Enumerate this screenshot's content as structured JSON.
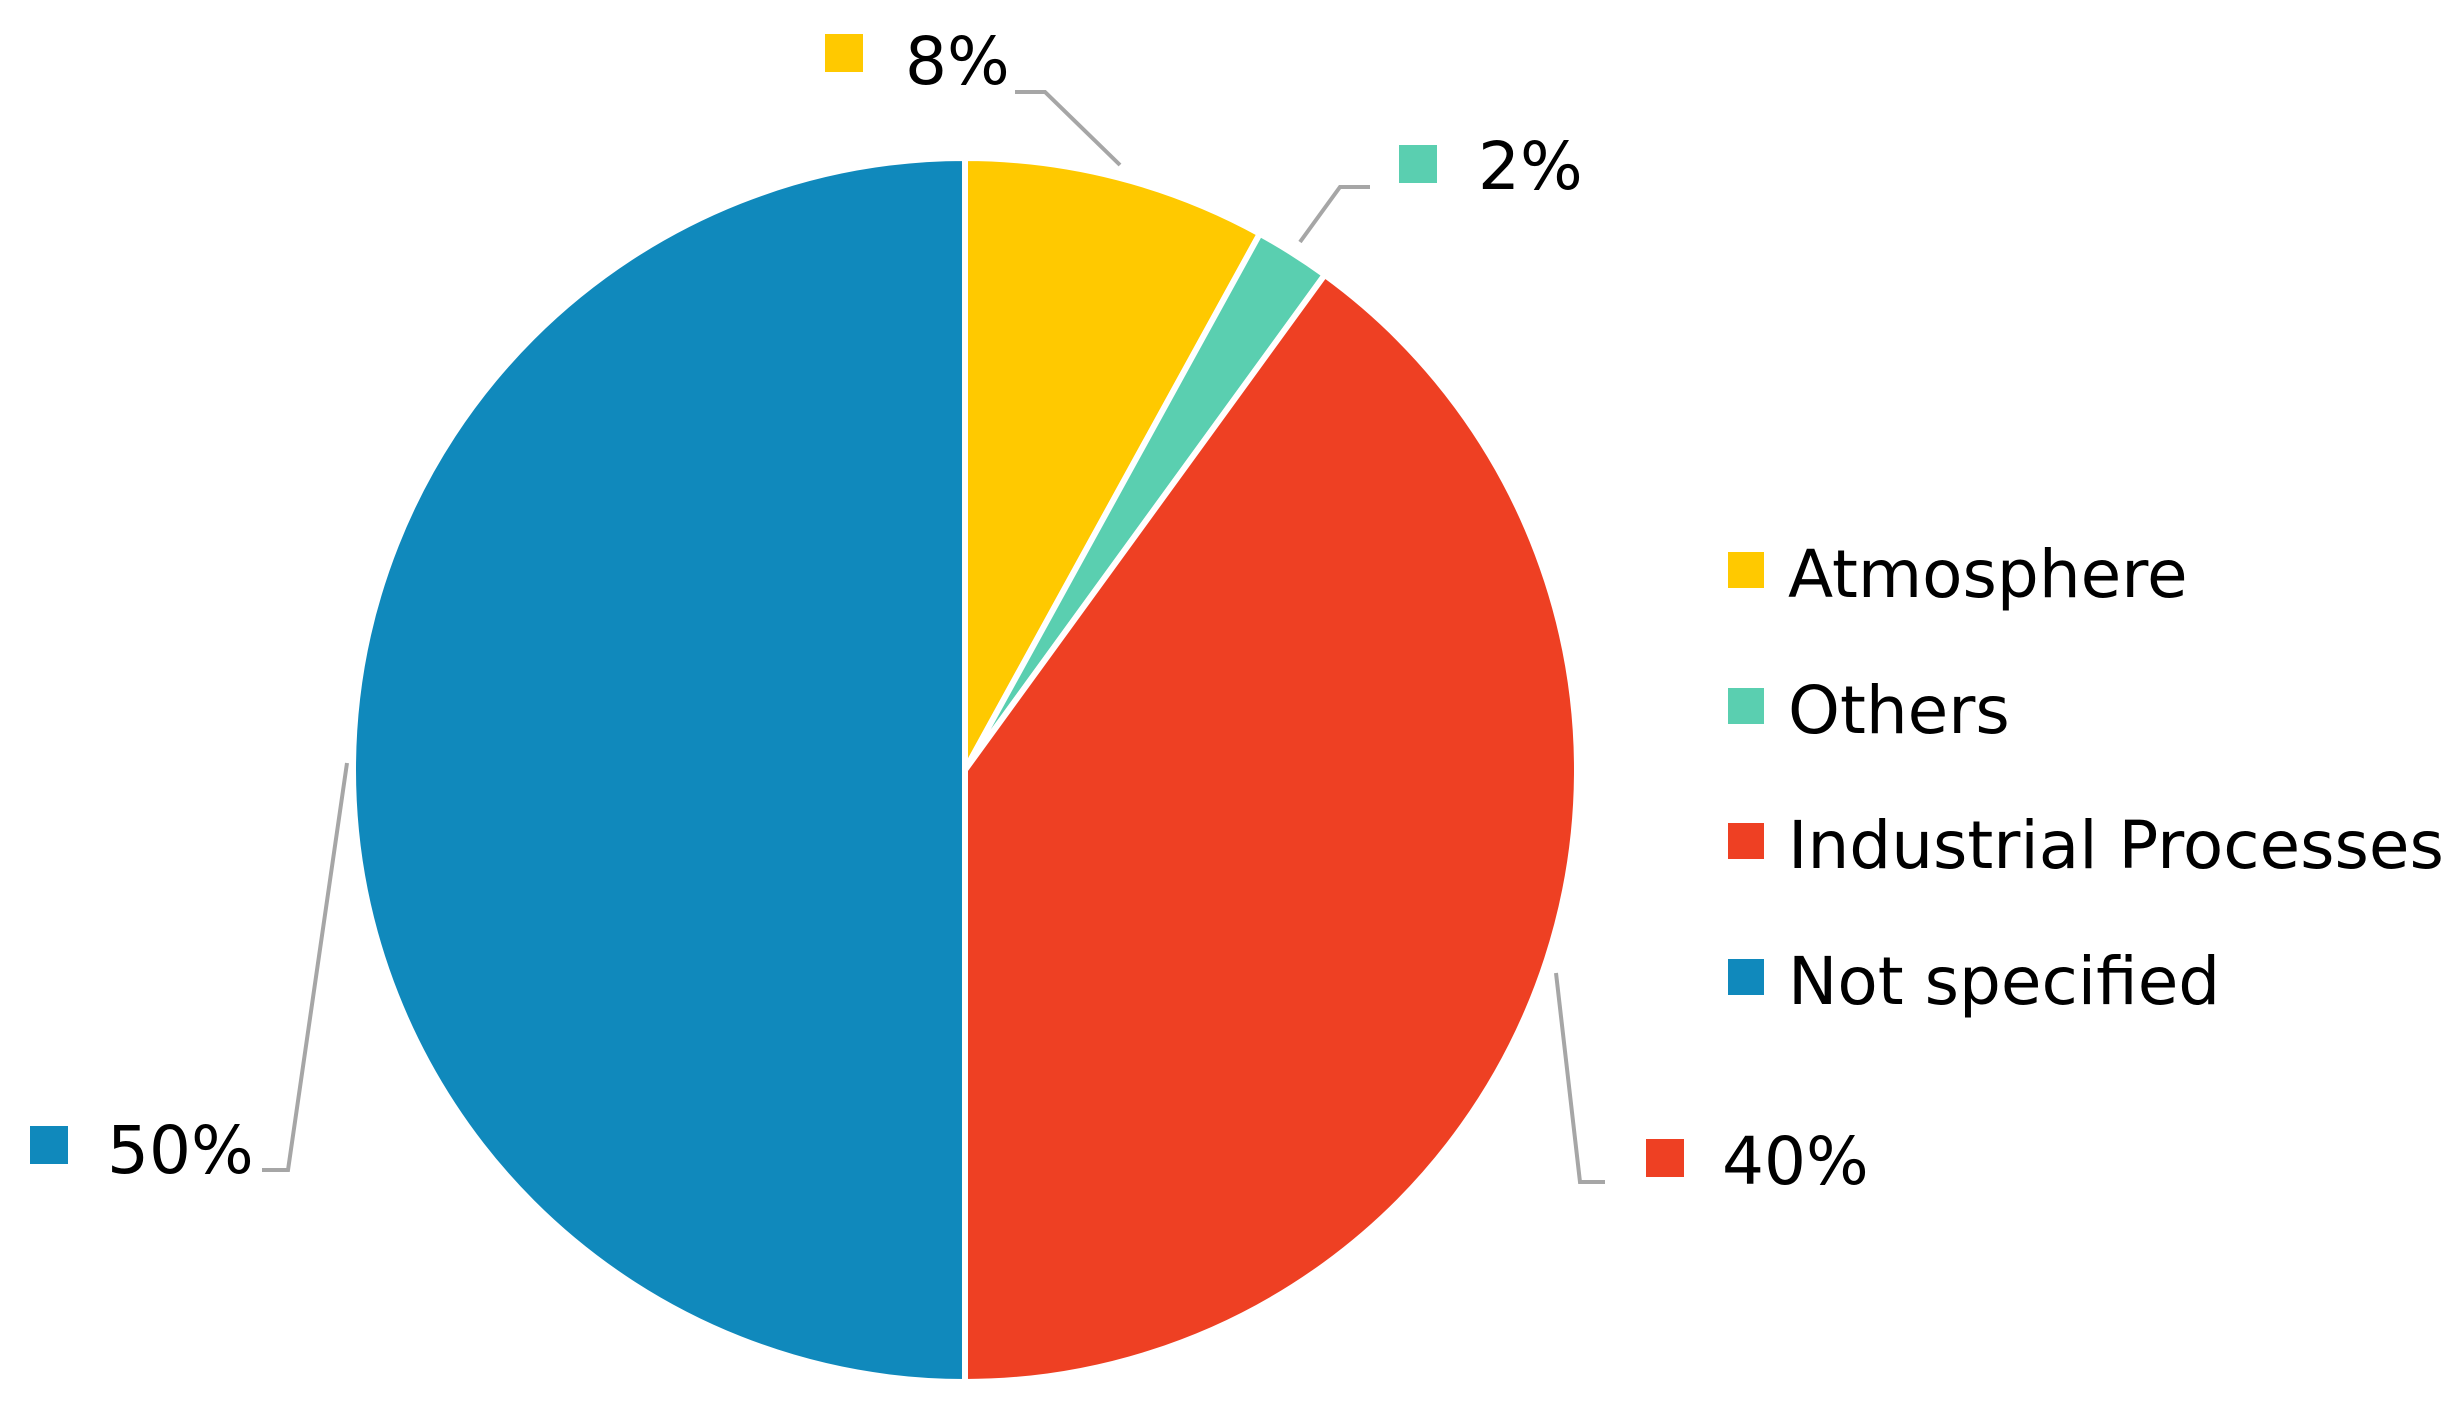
{
  "chart_data": {
    "type": "pie",
    "categories": [
      "Atmosphere",
      "Others",
      "Industrial Processes",
      "Not specified"
    ],
    "values": [
      8,
      2,
      40,
      50
    ],
    "data_labels": [
      "8%",
      "2%",
      "40%",
      "50%"
    ],
    "colors": [
      "#FFC900",
      "#5ACFB0",
      "#EE4023",
      "#1089BC"
    ],
    "legend": {
      "position": "right",
      "entries": [
        "Atmosphere",
        "Others",
        "Industrial Processes",
        "Not specified"
      ]
    },
    "start_angle": "12 o'clock",
    "direction": "clockwise"
  }
}
